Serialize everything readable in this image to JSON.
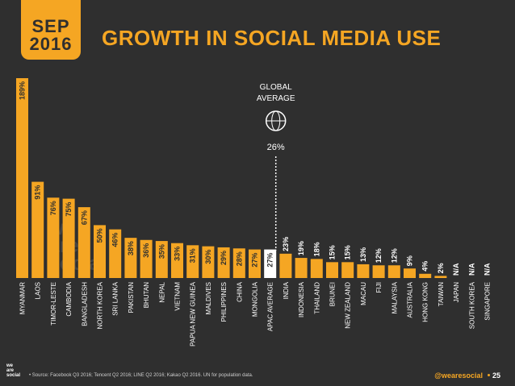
{
  "header": {
    "month": "SEP",
    "year": "2016",
    "title": "GROWTH IN SOCIAL MEDIA USE"
  },
  "global_average": {
    "label_line1": "GLOBAL",
    "label_line2": "AVERAGE",
    "value_label": "26%",
    "icon": "globe-icon"
  },
  "watermark": [
    "we",
    "are",
    "social"
  ],
  "footer": {
    "logo": [
      "we",
      "are",
      "social"
    ],
    "source": "• Source: Facebook Q3 2016; Tencent Q2 2016; LINE Q2 2016; Kakao Q2 2016. UN for population data.",
    "handle": "@wearesocial",
    "page": "25"
  },
  "colors": {
    "background": "#2f2f2f",
    "accent": "#f5a623",
    "highlight": "#ffffff",
    "text": "#ffffff"
  },
  "chart_data": {
    "type": "bar",
    "title": "GROWTH IN SOCIAL MEDIA USE",
    "unit": "%",
    "ylim": [
      0,
      189
    ],
    "categories": [
      "MYANMAR",
      "LAOS",
      "TIMOR-LESTE",
      "CAMBODIA",
      "BANGLADESH",
      "NORTH KOREA",
      "SRI LANKA",
      "PAKISTAN",
      "BHUTAN",
      "NEPAL",
      "VIETNAM",
      "PAPUA NEW GUINEA",
      "MALDIVES",
      "PHILIPPINES",
      "CHINA",
      "MONGOLIA",
      "APAC AVERAGE",
      "INDIA",
      "INDONESIA",
      "THAILAND",
      "BRUNEI",
      "NEW ZEALAND",
      "MACAU",
      "FIJI",
      "MALAYSIA",
      "AUSTRALIA",
      "HONG KONG",
      "TAIWAN",
      "JAPAN",
      "SOUTH KOREA",
      "SINGAPORE"
    ],
    "values": [
      189,
      91,
      76,
      75,
      67,
      50,
      46,
      38,
      36,
      35,
      33,
      31,
      30,
      29,
      28,
      27,
      27,
      23,
      19,
      18,
      15,
      15,
      13,
      12,
      12,
      9,
      4,
      2,
      null,
      null,
      null
    ],
    "labels": [
      "189%",
      "91%",
      "76%",
      "75%",
      "67%",
      "50%",
      "46%",
      "38%",
      "36%",
      "35%",
      "33%",
      "31%",
      "30%",
      "29%",
      "28%",
      "27%",
      "27%",
      "23%",
      "19%",
      "18%",
      "15%",
      "15%",
      "13%",
      "12%",
      "12%",
      "9%",
      "4%",
      "2%",
      "N/A",
      "N/A",
      "N/A"
    ],
    "highlight_category": "APAC AVERAGE",
    "reference_line": {
      "label": "GLOBAL AVERAGE",
      "value": 26
    }
  }
}
